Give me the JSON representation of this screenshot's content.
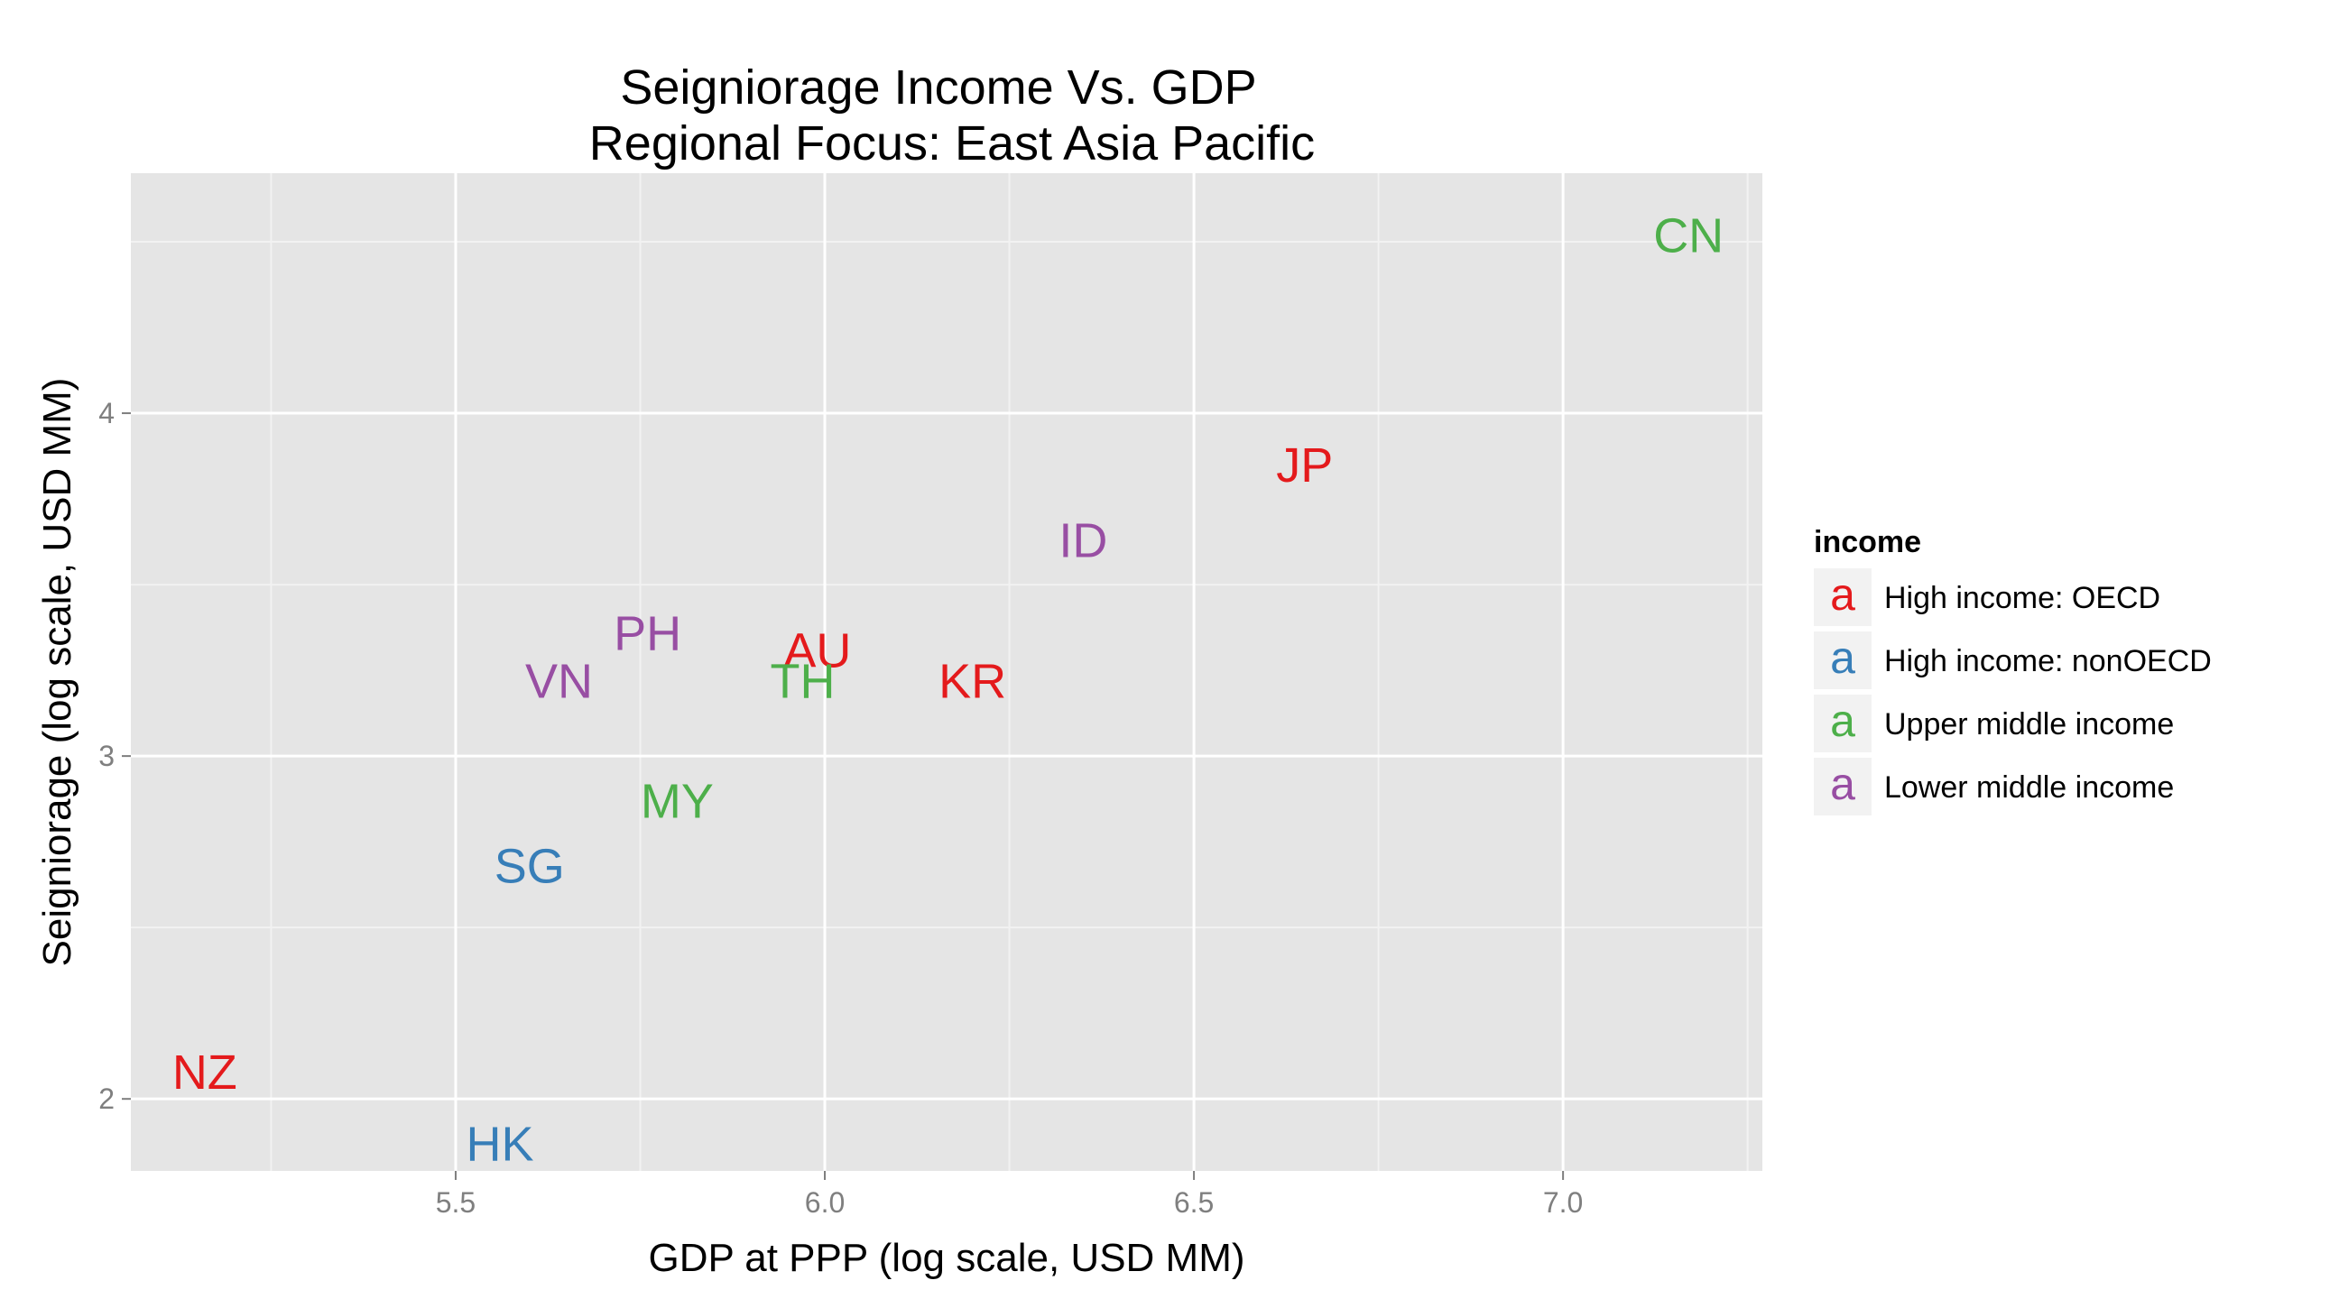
{
  "chart_data": {
    "type": "scatter",
    "title": "Seigniorage Income Vs. GDP",
    "subtitle": "Regional Focus: East Asia Pacific",
    "xlabel": "GDP at PPP (log scale, USD MM)",
    "ylabel": "Seigniorage (log scale, USD MM)",
    "xlim": [
      5.06,
      7.27
    ],
    "ylim": [
      1.79,
      4.7
    ],
    "xticks": [
      5.5,
      6.0,
      6.5,
      7.0
    ],
    "xtick_labels": [
      "5.5",
      "6.0",
      "6.5",
      "7.0"
    ],
    "yticks": [
      2,
      3,
      4
    ],
    "ytick_labels": [
      "2",
      "3",
      "4"
    ],
    "grid": true,
    "legend": {
      "title": "income",
      "position": "right",
      "key_glyph": "a",
      "entries": [
        {
          "label": "High income: OECD",
          "color": "#e41a1c"
        },
        {
          "label": "High income: nonOECD",
          "color": "#377eb8"
        },
        {
          "label": "Upper middle income",
          "color": "#4daf4a"
        },
        {
          "label": "Lower middle income",
          "color": "#984ea3"
        }
      ]
    },
    "points": [
      {
        "label": "CN",
        "x": 7.17,
        "y": 4.52,
        "income": "Upper middle income"
      },
      {
        "label": "JP",
        "x": 6.65,
        "y": 3.85,
        "income": "High income: OECD"
      },
      {
        "label": "ID",
        "x": 6.35,
        "y": 3.63,
        "income": "Lower middle income"
      },
      {
        "label": "PH",
        "x": 5.76,
        "y": 3.36,
        "income": "Lower middle income"
      },
      {
        "label": "AU",
        "x": 5.99,
        "y": 3.31,
        "income": "High income: OECD"
      },
      {
        "label": "TH",
        "x": 5.97,
        "y": 3.22,
        "income": "Upper middle income"
      },
      {
        "label": "VN",
        "x": 5.64,
        "y": 3.22,
        "income": "Lower middle income"
      },
      {
        "label": "KR",
        "x": 6.2,
        "y": 3.22,
        "income": "High income: OECD"
      },
      {
        "label": "MY",
        "x": 5.8,
        "y": 2.87,
        "income": "Upper middle income"
      },
      {
        "label": "SG",
        "x": 5.6,
        "y": 2.68,
        "income": "High income: nonOECD"
      },
      {
        "label": "NZ",
        "x": 5.16,
        "y": 2.08,
        "income": "High income: OECD"
      },
      {
        "label": "HK",
        "x": 5.56,
        "y": 1.87,
        "income": "High income: nonOECD"
      }
    ]
  }
}
